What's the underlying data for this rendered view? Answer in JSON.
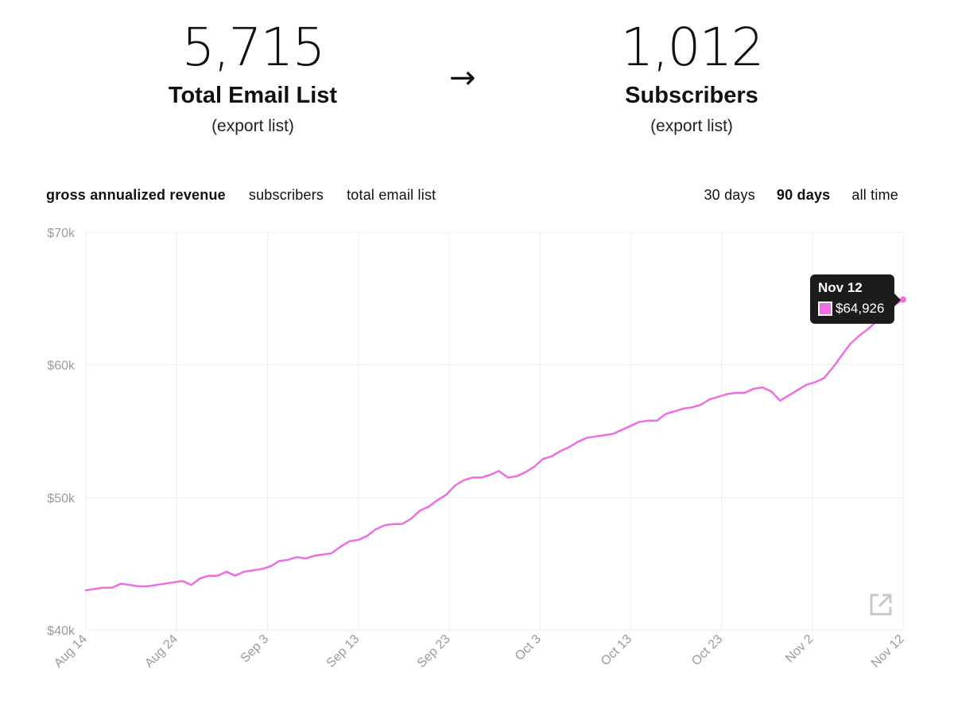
{
  "stats": {
    "left": {
      "value": "5,715",
      "label": "Total Email List",
      "link": "(export list)"
    },
    "arrow": "→",
    "right": {
      "value": "1,012",
      "label": "Subscribers",
      "link": "(export list)"
    }
  },
  "metric_tabs": [
    "gross annualized revenue",
    "subscribers",
    "total email list"
  ],
  "active_metric": "gross annualized revenue",
  "range_tabs": [
    "30 days",
    "90 days",
    "all time"
  ],
  "active_range": "90 days",
  "tooltip": {
    "date": "Nov 12",
    "value": "$64,926"
  },
  "icons": {
    "expand": "external-link-icon"
  },
  "colors": {
    "line": "#ee6ee0",
    "grid": "#eeeeee",
    "axis_text": "#9a9a9a",
    "tooltip_bg": "#1c1c1c"
  },
  "chart_data": {
    "type": "line",
    "x_ticks": [
      "Aug 14",
      "Aug 24",
      "Sep 3",
      "Sep 13",
      "Sep 23",
      "Oct 3",
      "Oct 13",
      "Oct 23",
      "Nov 2",
      "Nov 12"
    ],
    "y_ticks": [
      "$70k",
      "$60k",
      "$50k",
      "$40k"
    ],
    "ylim": [
      40000,
      70000
    ],
    "grid": true,
    "legend": "none",
    "series": [
      {
        "values": [
          43000,
          43100,
          43200,
          43200,
          43500,
          43400,
          43300,
          43300,
          43400,
          43500,
          43600,
          43700,
          43400,
          43900,
          44100,
          44100,
          44400,
          44100,
          44400,
          44500,
          44600,
          44800,
          45200,
          45300,
          45500,
          45400,
          45600,
          45700,
          45800,
          46300,
          46700,
          46800,
          47100,
          47600,
          47900,
          48000,
          48000,
          48400,
          49000,
          49300,
          49800,
          50200,
          50900,
          51300,
          51500,
          51500,
          51700,
          52000,
          51500,
          51600,
          51900,
          52300,
          52900,
          53100,
          53500,
          53800,
          54200,
          54500,
          54600,
          54700,
          54800,
          55100,
          55400,
          55700,
          55800,
          55800,
          56300,
          56500,
          56700,
          56800,
          57000,
          57400,
          57600,
          57800,
          57900,
          57900,
          58200,
          58300,
          58000,
          57300,
          57700,
          58100,
          58500,
          58700,
          59000,
          59800,
          60700,
          61600,
          62200,
          62700,
          63300,
          64000,
          64500,
          64926
        ]
      }
    ]
  }
}
